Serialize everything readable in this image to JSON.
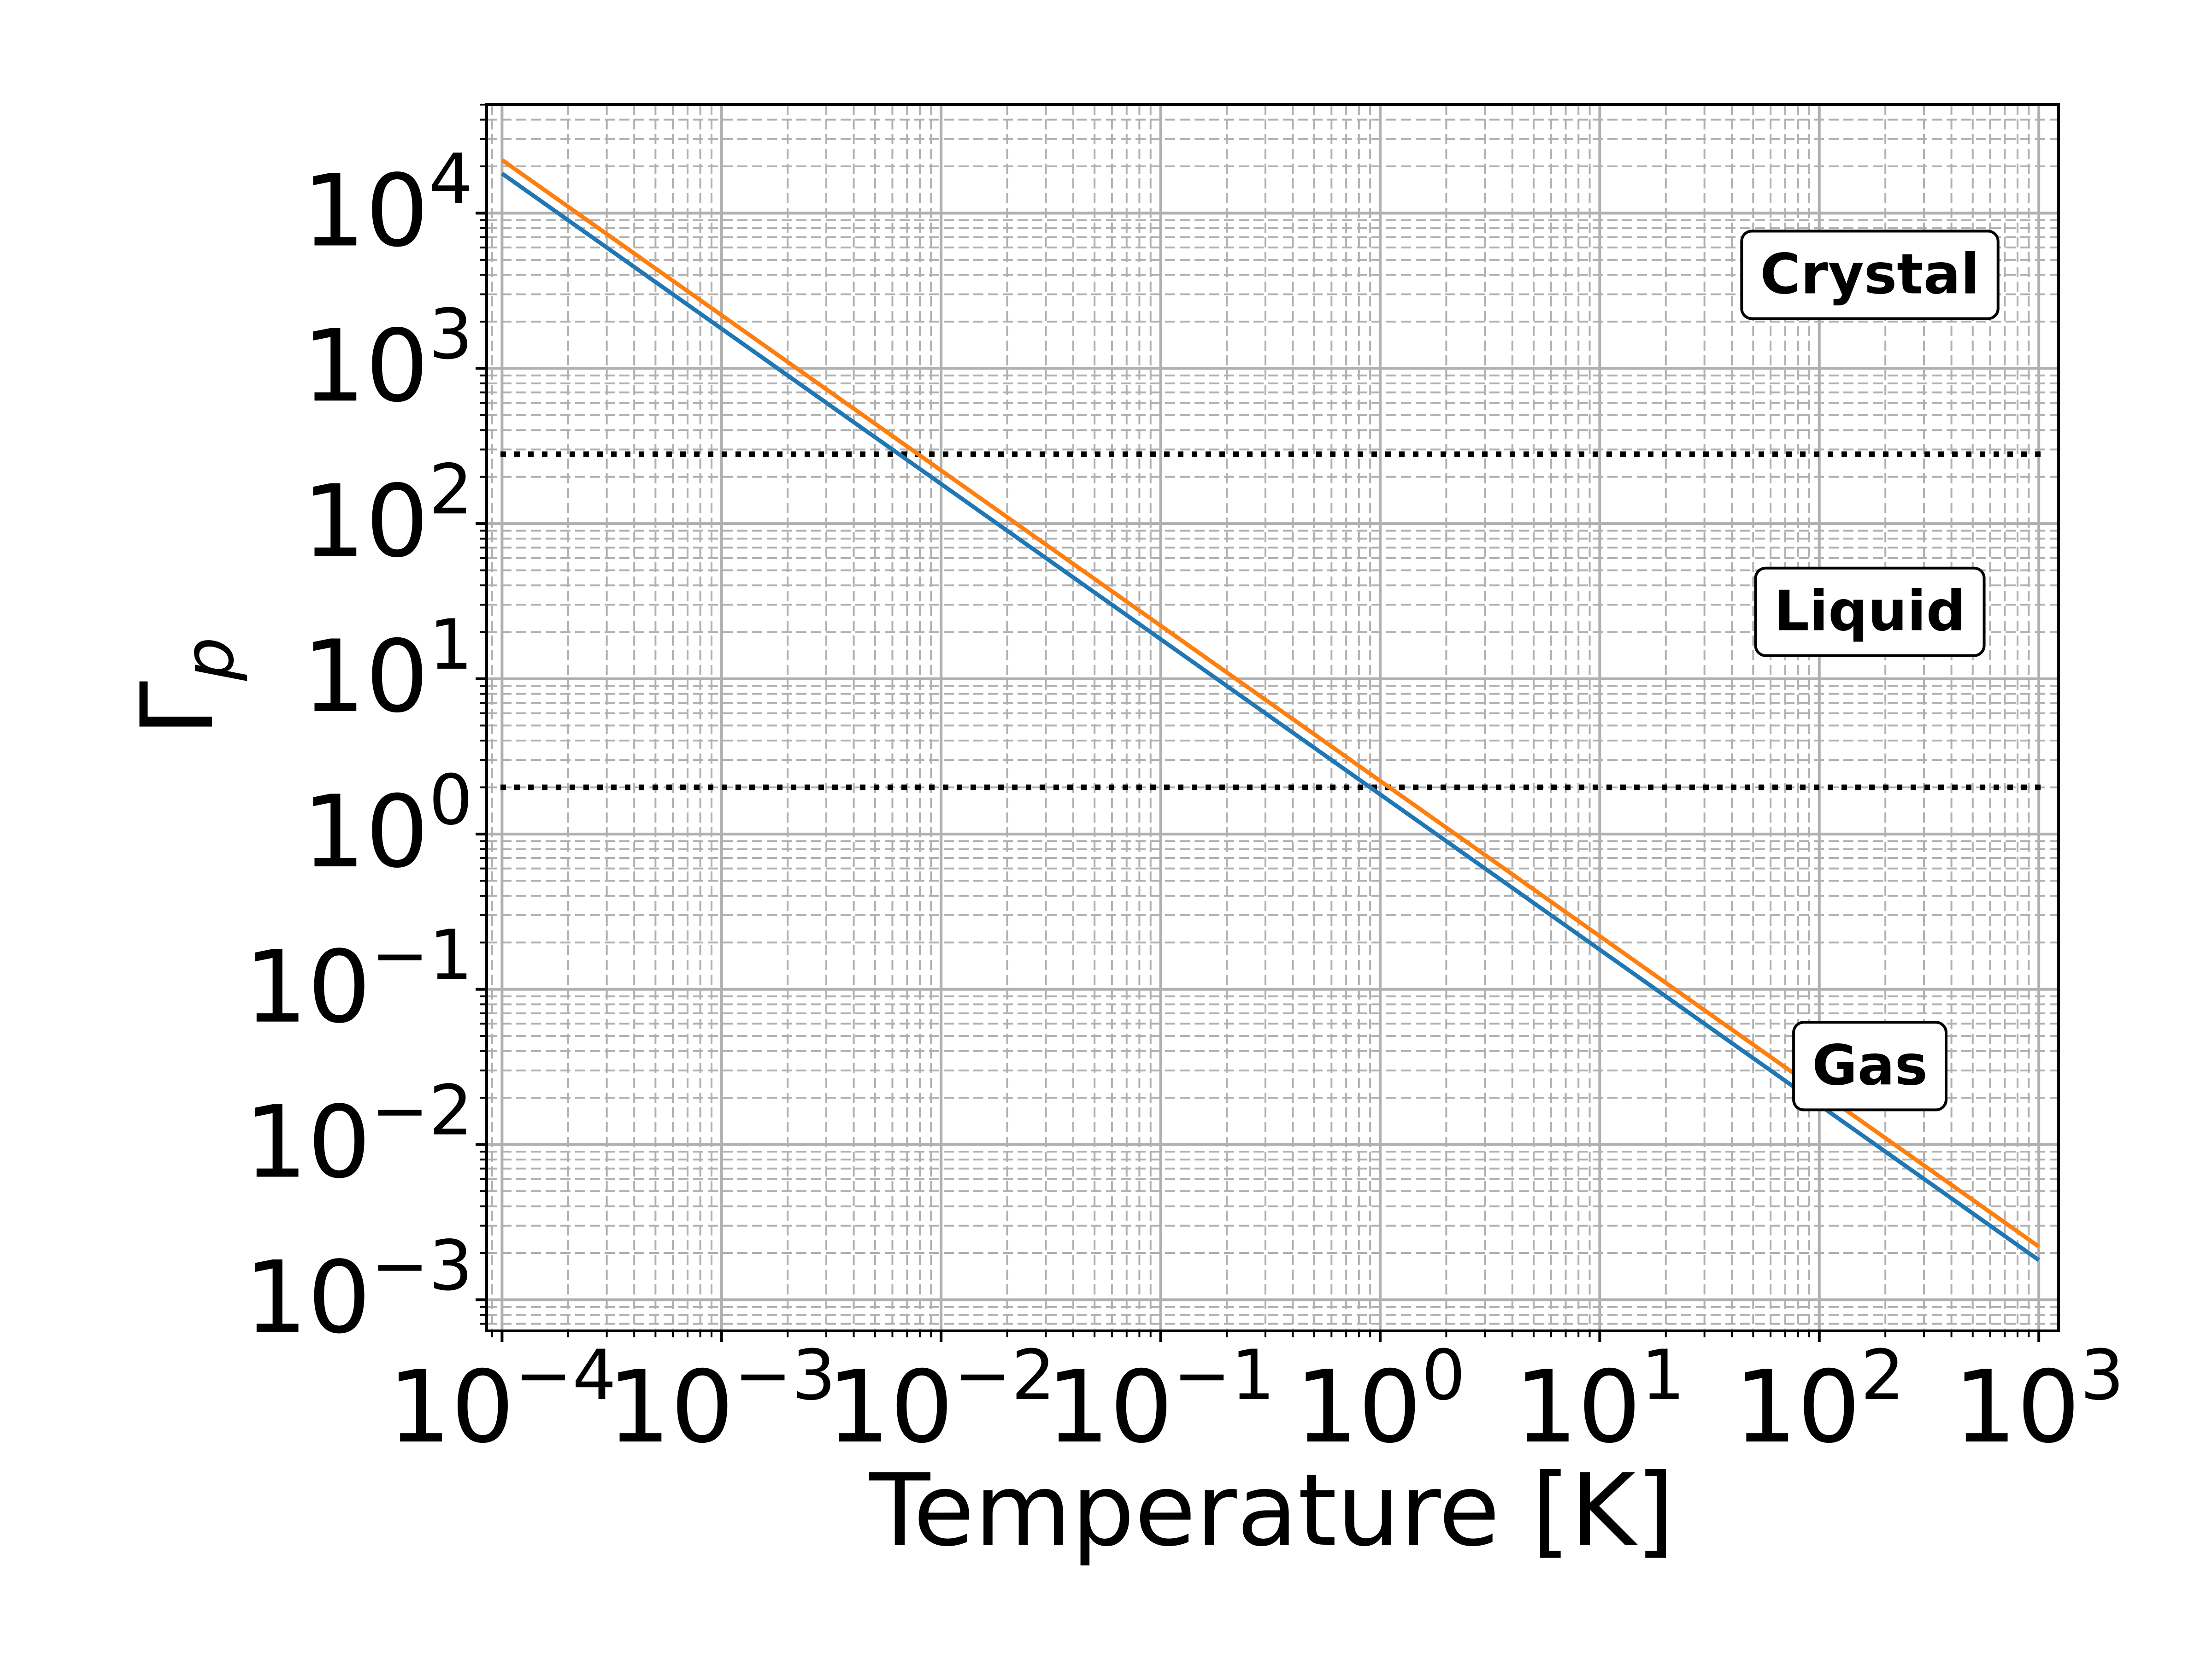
{
  "chart_data": {
    "type": "line",
    "xlabel": "Temperature [K]",
    "ylabel_base": "Γ",
    "ylabel_sub": "p",
    "x_scale": "log",
    "y_scale": "log",
    "xlim": [
      8.51e-05,
      1230
    ],
    "ylim": [
      0.00063,
      50000
    ],
    "grid": true,
    "x_ticks": [
      {
        "value": 0.0001,
        "base": "10",
        "exp": "−4"
      },
      {
        "value": 0.001,
        "base": "10",
        "exp": "−3"
      },
      {
        "value": 0.01,
        "base": "10",
        "exp": "−2"
      },
      {
        "value": 0.1,
        "base": "10",
        "exp": "−1"
      },
      {
        "value": 1,
        "base": "10",
        "exp": "0"
      },
      {
        "value": 10,
        "base": "10",
        "exp": "1"
      },
      {
        "value": 100,
        "base": "10",
        "exp": "2"
      },
      {
        "value": 1000,
        "base": "10",
        "exp": "3"
      }
    ],
    "y_ticks": [
      {
        "value": 0.001,
        "base": "10",
        "exp": "−3"
      },
      {
        "value": 0.01,
        "base": "10",
        "exp": "−2"
      },
      {
        "value": 0.1,
        "base": "10",
        "exp": "−1"
      },
      {
        "value": 1,
        "base": "10",
        "exp": "0"
      },
      {
        "value": 10,
        "base": "10",
        "exp": "1"
      },
      {
        "value": 100,
        "base": "10",
        "exp": "2"
      },
      {
        "value": 1000,
        "base": "10",
        "exp": "3"
      },
      {
        "value": 10000,
        "base": "10",
        "exp": "4"
      }
    ],
    "series": [
      {
        "color": "#1f77b4",
        "x": [
          0.0001,
          1000
        ],
        "y": [
          18000,
          0.0018
        ]
      },
      {
        "color": "#ff7f0e",
        "x": [
          0.0001,
          1000
        ],
        "y": [
          22000,
          0.0022
        ]
      }
    ],
    "hlines": [
      {
        "y": 280,
        "style": "dotted",
        "color": "#000000"
      },
      {
        "y": 2,
        "style": "dotted",
        "color": "#000000"
      }
    ],
    "annotations": [
      {
        "text": "Crystal",
        "x": 170,
        "y": 4000
      },
      {
        "text": "Liquid",
        "x": 170,
        "y": 27
      },
      {
        "text": "Gas",
        "x": 170,
        "y": 0.032
      }
    ]
  }
}
